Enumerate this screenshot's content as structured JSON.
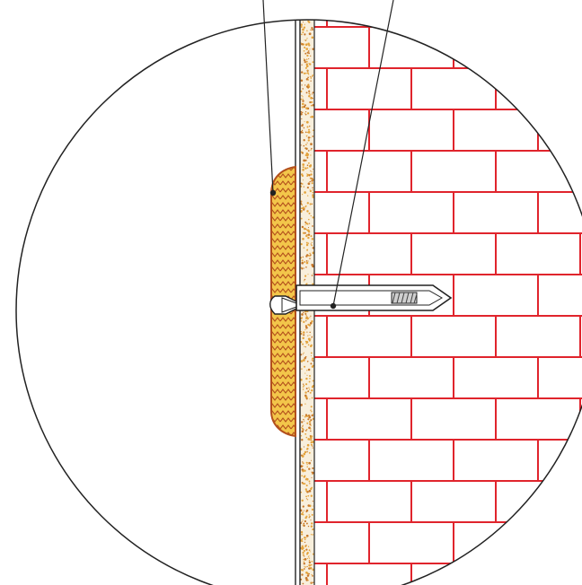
{
  "diagram": {
    "kind": "detail-section",
    "components": [
      {
        "id": "brick-wall",
        "icon": "brick-wall-icon"
      },
      {
        "id": "plaster-layer",
        "icon": "plaster-layer-icon"
      },
      {
        "id": "adhesive-dab",
        "icon": "adhesive-dab-icon"
      },
      {
        "id": "anchor-plug",
        "icon": "anchor-plug-icon"
      },
      {
        "id": "screw",
        "icon": "screw-icon"
      },
      {
        "id": "board-panel",
        "icon": "board-panel-icon"
      }
    ],
    "leaders": [
      {
        "target": "adhesive-dab"
      },
      {
        "target": "anchor-plug"
      }
    ],
    "colors": {
      "brick_mortar": "#e0242c",
      "adhesive_fill": "#f3c64a",
      "adhesive_outline": "#b3501c",
      "plaster_speckle": "#e3a23a",
      "line": "#222222"
    }
  }
}
